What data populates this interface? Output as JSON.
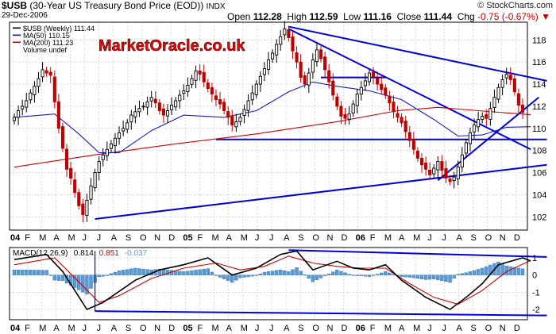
{
  "header": {
    "symbol": "$USB",
    "description": "(30-Year US Treasury Bond Price (EOD))",
    "exchange": "INDX",
    "date": "29-Dec-2006",
    "open_label": "Open",
    "open": "112.28",
    "high_label": "High",
    "high": "112.59",
    "low_label": "Low",
    "low": "111.16",
    "close_label": "Close",
    "close": "111.44",
    "chg_label": "Chg",
    "chg": "-0.75 (-0.67%)",
    "chg_arrow": "▼",
    "brand": "© StockCharts.com",
    "watermark": "MarketOracle.co.uk"
  },
  "colors": {
    "up": "#000000",
    "down": "#c00000",
    "ma50": "#1a1acd",
    "ma200": "#cc0000",
    "trendline": "#0000dd",
    "histogram": "#5b9bd5",
    "watermark_fill": "#ff0000",
    "grid": "#c8c8c8"
  },
  "chart_data": [
    {
      "type": "candlestick",
      "title": "$USB (Weekly) 111.44",
      "legend": [
        {
          "name": "$USB (Weekly) 111.44",
          "color": "#000000"
        },
        {
          "name": "MA(50) 110.15",
          "color": "#1a1acd"
        },
        {
          "name": "MA(200) 111.23",
          "color": "#cc0000"
        },
        {
          "name": "Volume undef",
          "color": "#ffffff"
        }
      ],
      "legend_position": "top-left",
      "x_tick_labels": [
        "04",
        "F",
        "M",
        "A",
        "M",
        "J",
        "J",
        "A",
        "S",
        "O",
        "N",
        "D",
        "05",
        "F",
        "M",
        "A",
        "M",
        "J",
        "J",
        "A",
        "S",
        "O",
        "N",
        "D",
        "06",
        "F",
        "M",
        "A",
        "M",
        "J",
        "J",
        "A",
        "S",
        "O",
        "N",
        "D"
      ],
      "y_tick_labels": [
        "102",
        "104",
        "106",
        "108",
        "110",
        "112",
        "114",
        "116",
        "118"
      ],
      "ylim": [
        100.8,
        119.6
      ],
      "grid": true,
      "weekly_close": [
        111.0,
        111.6,
        112.0,
        112.5,
        113.2,
        113.8,
        114.5,
        115.3,
        115.0,
        114.8,
        112.4,
        110.0,
        108.2,
        106.3,
        105.5,
        104.2,
        103.0,
        102.2,
        103.5,
        104.8,
        106.0,
        107.0,
        107.6,
        108.1,
        108.6,
        109.1,
        109.6,
        110.0,
        110.5,
        111.2,
        111.5,
        111.8,
        112.0,
        112.4,
        112.8,
        112.3,
        111.6,
        111.2,
        111.6,
        112.1,
        112.5,
        113.0,
        113.4,
        113.9,
        114.5,
        115.2,
        114.9,
        114.2,
        113.6,
        113.1,
        112.6,
        112.2,
        111.6,
        111.0,
        110.3,
        110.6,
        111.0,
        111.7,
        112.5,
        113.2,
        114.0,
        114.7,
        115.4,
        116.2,
        116.8,
        117.6,
        118.3,
        119.0,
        118.2,
        117.0,
        116.0,
        114.6,
        114.0,
        115.0,
        116.2,
        117.1,
        116.3,
        115.3,
        114.2,
        113.0,
        112.0,
        111.1,
        110.9,
        111.3,
        112.2,
        113.1,
        113.7,
        114.3,
        115.0,
        114.7,
        114.0,
        113.5,
        113.0,
        112.3,
        111.5,
        111.0,
        110.5,
        109.7,
        108.9,
        108.1,
        107.3,
        106.7,
        106.3,
        105.8,
        106.4,
        107.0,
        106.2,
        105.5,
        105.2,
        105.6,
        106.5,
        107.6,
        108.7,
        109.6,
        110.3,
        110.8,
        111.1,
        110.9,
        111.8,
        112.8,
        113.7,
        114.4,
        114.9,
        114.4,
        113.3,
        112.1,
        111.44
      ],
      "ma50_points": [
        [
          0,
          111.0
        ],
        [
          10,
          111.3
        ],
        [
          16,
          109.5
        ],
        [
          21,
          107.8
        ],
        [
          26,
          107.8
        ],
        [
          34,
          109.8
        ],
        [
          42,
          111.2
        ],
        [
          52,
          111.0
        ],
        [
          60,
          111.6
        ],
        [
          68,
          113.3
        ],
        [
          74,
          114.2
        ],
        [
          80,
          113.8
        ],
        [
          88,
          113.4
        ],
        [
          96,
          112.6
        ],
        [
          104,
          110.8
        ],
        [
          110,
          109.3
        ],
        [
          116,
          109.4
        ],
        [
          122,
          110.1
        ],
        [
          128,
          110.15
        ]
      ],
      "ma200_points": [
        [
          0,
          106.5
        ],
        [
          20,
          107.6
        ],
        [
          40,
          108.6
        ],
        [
          60,
          109.5
        ],
        [
          80,
          110.6
        ],
        [
          95,
          111.6
        ],
        [
          105,
          111.9
        ],
        [
          115,
          111.6
        ],
        [
          128,
          111.23
        ]
      ]
    },
    {
      "type": "line",
      "title": "MACD(12,26,9) 0.814, 0.851, -0.037",
      "legend": [
        {
          "name": "MACD(12,26,9)",
          "color": "#000000"
        },
        {
          "name": "0.814",
          "color": "#000000"
        },
        {
          "name": "0.851",
          "color": "#cc0000"
        },
        {
          "name": "-0.037",
          "color": "#5b9bd5"
        }
      ],
      "y_tick_labels": [
        "-2",
        "-1",
        "0",
        "1"
      ],
      "ylim": [
        -2.6,
        1.6
      ],
      "macd_points": [
        [
          0,
          0.9
        ],
        [
          8,
          1.2
        ],
        [
          12,
          0.2
        ],
        [
          18,
          -2.0
        ],
        [
          22,
          -1.6
        ],
        [
          30,
          -0.3
        ],
        [
          36,
          0.3
        ],
        [
          42,
          0.6
        ],
        [
          48,
          1.0
        ],
        [
          54,
          0.0
        ],
        [
          60,
          0.4
        ],
        [
          66,
          1.2
        ],
        [
          70,
          1.4
        ],
        [
          74,
          0.3
        ],
        [
          80,
          0.8
        ],
        [
          84,
          0.4
        ],
        [
          88,
          0.3
        ],
        [
          92,
          0.6
        ],
        [
          96,
          -0.3
        ],
        [
          102,
          -1.3
        ],
        [
          108,
          -2.0
        ],
        [
          112,
          -1.3
        ],
        [
          116,
          -0.5
        ],
        [
          120,
          0.6
        ],
        [
          126,
          1.0
        ],
        [
          128,
          0.814
        ]
      ],
      "signal_points": [
        [
          0,
          0.6
        ],
        [
          10,
          1.0
        ],
        [
          16,
          -0.4
        ],
        [
          21,
          -1.6
        ],
        [
          26,
          -1.2
        ],
        [
          34,
          -0.2
        ],
        [
          42,
          0.4
        ],
        [
          50,
          0.7
        ],
        [
          56,
          0.3
        ],
        [
          62,
          0.5
        ],
        [
          68,
          1.1
        ],
        [
          74,
          0.7
        ],
        [
          80,
          0.5
        ],
        [
          86,
          0.4
        ],
        [
          92,
          0.4
        ],
        [
          98,
          -0.5
        ],
        [
          104,
          -1.3
        ],
        [
          110,
          -1.7
        ],
        [
          116,
          -0.9
        ],
        [
          122,
          0.2
        ],
        [
          128,
          0.851
        ]
      ]
    }
  ]
}
